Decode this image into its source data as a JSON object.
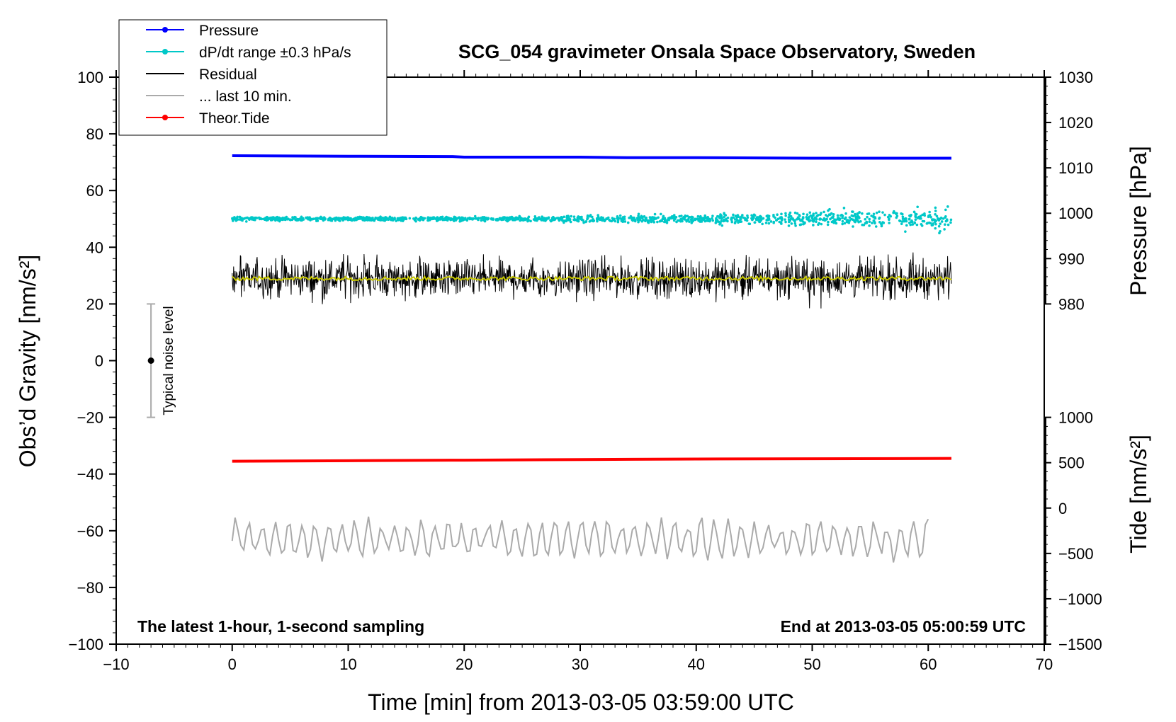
{
  "chart_data": {
    "type": "line",
    "title": "SCG_054 gravimeter Onsala Space Observatory, Sweden",
    "xlabel": "Time [min] from 2013-03-05 03:59:00 UTC",
    "ylabel": "Obs’d Gravity [nm/s²]",
    "y2label": "Pressure [hPa]",
    "y3label": "Tide [nm/s²]",
    "xlim": [
      -10,
      70
    ],
    "ylim": [
      -100,
      100
    ],
    "x_ticks": [
      "−10",
      "0",
      "10",
      "20",
      "30",
      "40",
      "50",
      "60",
      "70"
    ],
    "y_ticks": [
      "−100",
      "−80",
      "−60",
      "−40",
      "−20",
      "0",
      "20",
      "40",
      "60",
      "80",
      "100"
    ],
    "pressure_ticks": [
      "980",
      "990",
      "1000",
      "1010",
      "1020",
      "1030"
    ],
    "tide_ticks": [
      "−1500",
      "−1000",
      "−500",
      "0",
      "500",
      "1000"
    ],
    "pressure_axis_range": [
      980,
      1030
    ],
    "tide_axis_range": [
      -1500,
      1000
    ],
    "grid": false,
    "legend_position": "top-left",
    "legend": [
      {
        "label": "Pressure",
        "color": "#0000ff",
        "marker": true
      },
      {
        "label": "dP/dt range ±0.3 hPa/s",
        "color": "#00c8c8",
        "marker": true
      },
      {
        "label": "Residual",
        "color": "#000000",
        "marker": false
      },
      {
        "label": "... last 10 min.",
        "color": "#aaaaaa",
        "marker": false
      },
      {
        "label": "Theor.Tide",
        "color": "#ff0000",
        "marker": true
      }
    ],
    "note_left": "The latest 1-hour, 1-second sampling",
    "note_right": "End at 2013-03-05 05:00:59 UTC",
    "noise_label": "Typical noise level",
    "noise_bar": {
      "x": -7,
      "center": 0,
      "half_range": 20
    },
    "series": [
      {
        "name": "Pressure",
        "color": "#0000ff",
        "axis": "gravity",
        "x": [
          0,
          10,
          19,
          20,
          30,
          34,
          40,
          50,
          62
        ],
        "y": [
          72.3,
          72.1,
          72.0,
          71.8,
          71.8,
          71.6,
          71.6,
          71.4,
          71.4
        ]
      },
      {
        "name": "dP/dt range ±0.3 hPa/s",
        "color": "#00c8c8",
        "axis": "gravity",
        "x_range": [
          0,
          62
        ],
        "center": 50,
        "spread_start": 1,
        "spread_end": 6
      },
      {
        "name": "Residual",
        "color": "#000000",
        "axis": "gravity",
        "x_range": [
          0,
          62
        ],
        "center": 29,
        "spread": 10
      },
      {
        "name": "Residual smoothed",
        "color": "#c8c800",
        "axis": "gravity",
        "x_range": [
          0,
          62
        ],
        "center": 29
      },
      {
        "name": "Theor.Tide",
        "color": "#ff0000",
        "axis": "gravity",
        "x": [
          0,
          10,
          20,
          30,
          40,
          50,
          62
        ],
        "y": [
          -35.5,
          -35.3,
          -35.1,
          -34.9,
          -34.7,
          -34.6,
          -34.5
        ]
      },
      {
        "name": "... last 10 min.",
        "color": "#aaaaaa",
        "axis": "gravity",
        "x_range": [
          0,
          60
        ],
        "center": -63,
        "spread": 8
      }
    ]
  }
}
